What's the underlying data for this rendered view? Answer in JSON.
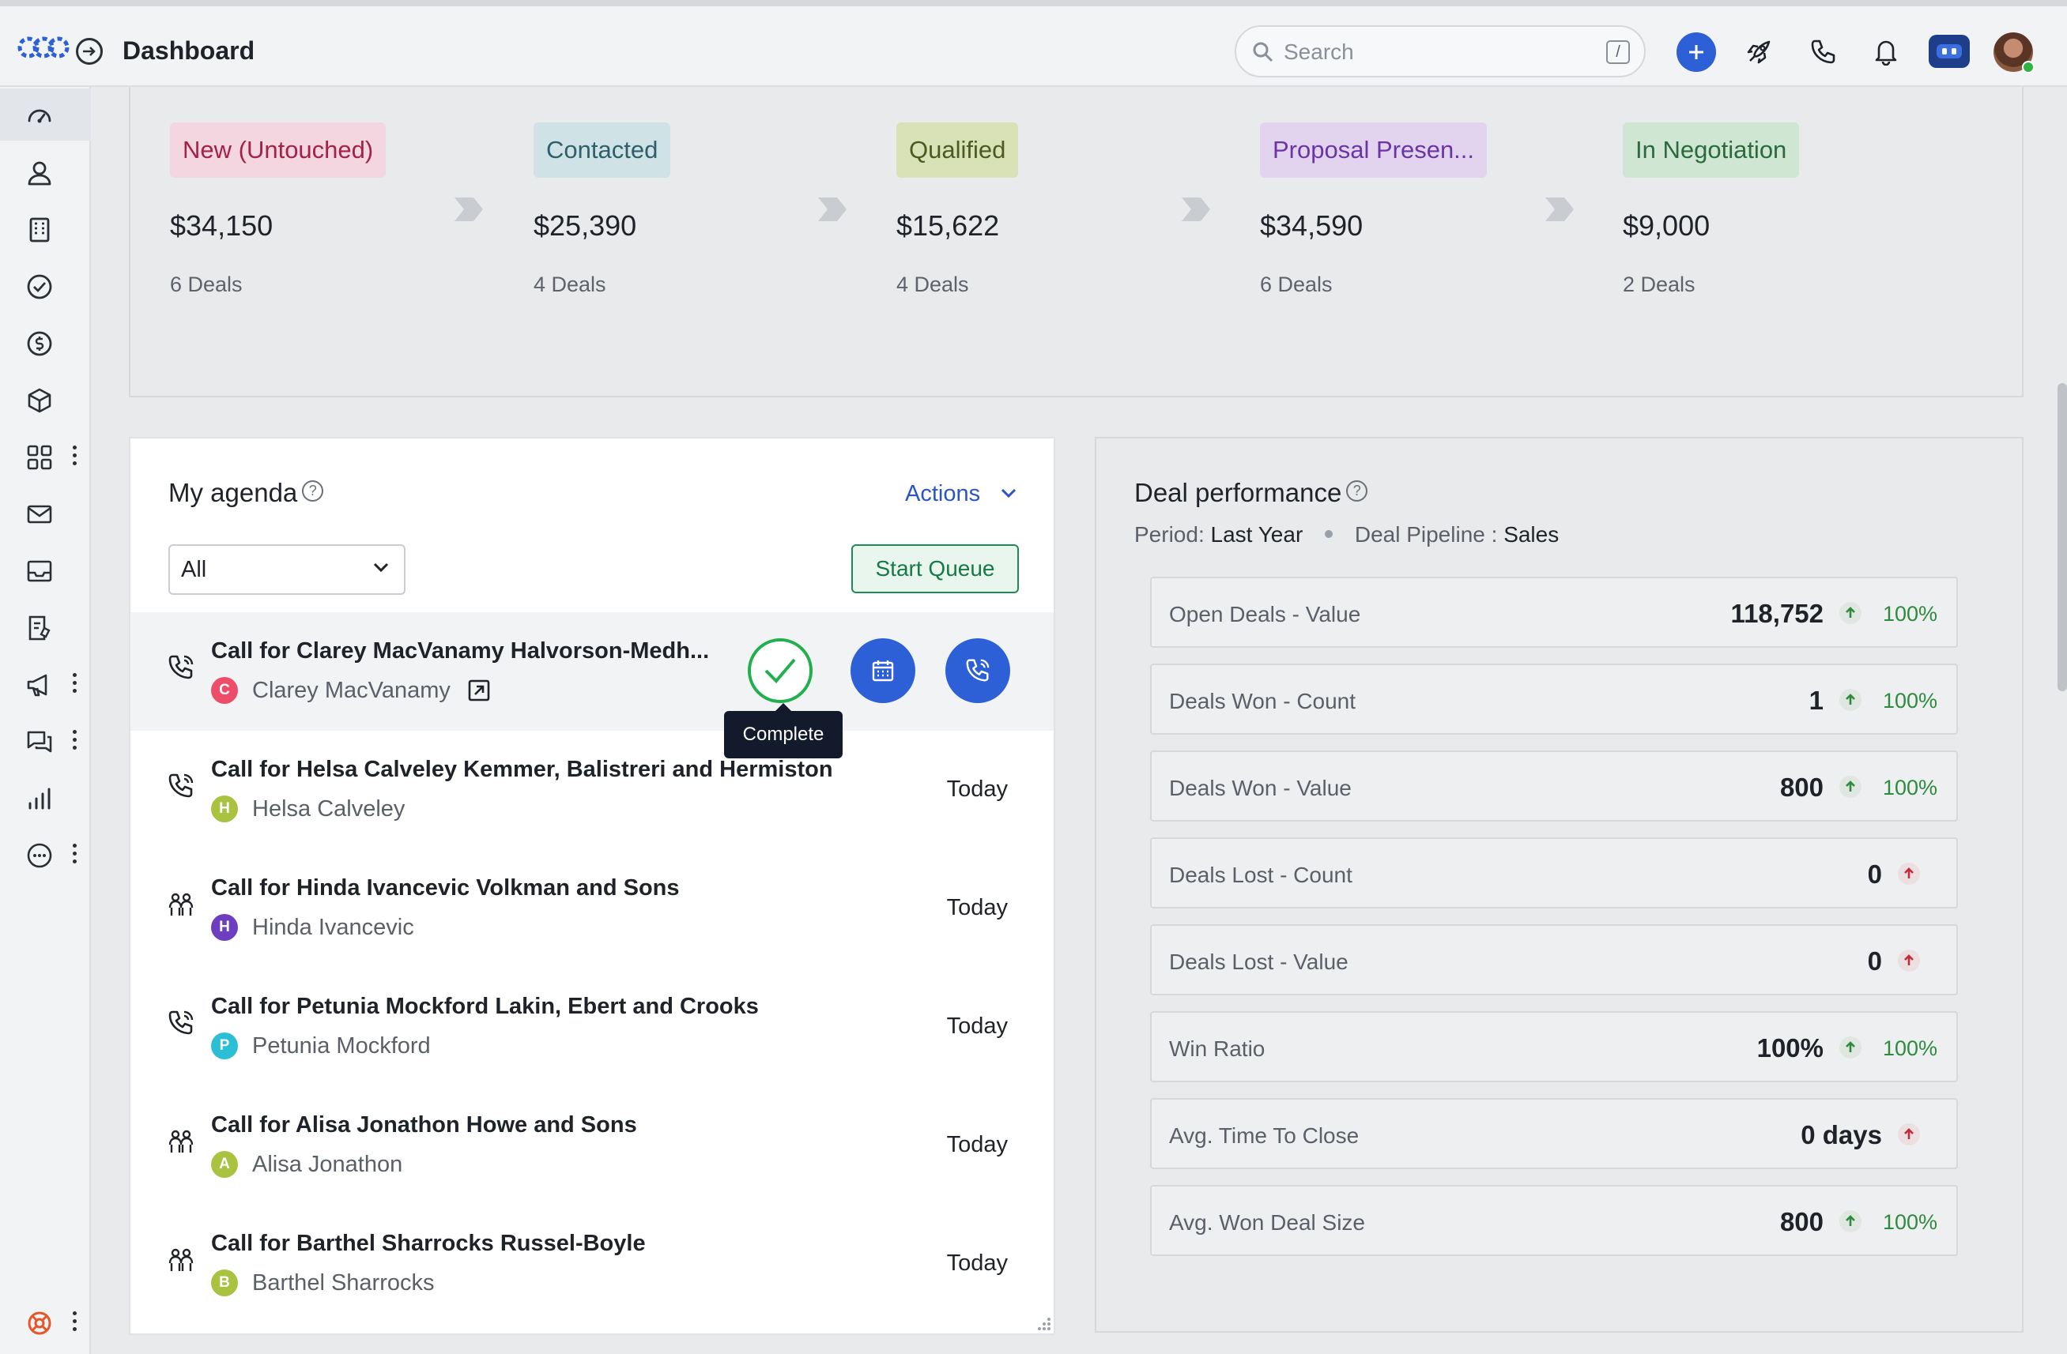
{
  "header": {
    "title": "Dashboard",
    "search_placeholder": "Search",
    "search_shortcut": "/"
  },
  "sidebar": {
    "items": [
      {
        "name": "dashboard-icon"
      },
      {
        "name": "contacts-icon"
      },
      {
        "name": "companies-icon"
      },
      {
        "name": "tasks-icon"
      },
      {
        "name": "deals-icon"
      },
      {
        "name": "products-icon"
      },
      {
        "name": "apps-icon"
      },
      {
        "name": "mail-icon"
      },
      {
        "name": "inbox-icon"
      },
      {
        "name": "documents-icon"
      },
      {
        "name": "campaigns-icon"
      },
      {
        "name": "chat-icon"
      },
      {
        "name": "reports-icon"
      },
      {
        "name": "more-icon"
      }
    ]
  },
  "pipeline": {
    "stages": [
      {
        "label": "New (Untouched)",
        "amount": "$34,150",
        "deals": "6 Deals",
        "bg": "#f3d6df",
        "fg": "#a3224a"
      },
      {
        "label": "Contacted",
        "amount": "$25,390",
        "deals": "4 Deals",
        "bg": "#cfe3e6",
        "fg": "#2f5f6a"
      },
      {
        "label": "Qualified",
        "amount": "$15,622",
        "deals": "4 Deals",
        "bg": "#d9e2b7",
        "fg": "#4b5a1f"
      },
      {
        "label": "Proposal Presen...",
        "amount": "$34,590",
        "deals": "6 Deals",
        "bg": "#e2d4ef",
        "fg": "#6c35a4"
      },
      {
        "label": "In Negotiation",
        "amount": "$9,000",
        "deals": "2 Deals",
        "bg": "#cfe6d3",
        "fg": "#2b6a3c"
      }
    ]
  },
  "agenda": {
    "title": "My agenda",
    "actions_label": "Actions",
    "filter_value": "All",
    "start_queue_label": "Start Queue",
    "tooltip": "Complete",
    "rows": [
      {
        "icon": "phone-icon",
        "title": "Call for Clarey MacVanamy Halvorson-Medh...",
        "person": "Clarey MacVanamy",
        "initial": "C",
        "badge_color": "#ee4d6a",
        "date": ""
      },
      {
        "icon": "phone-icon",
        "title": "Call for Helsa Calveley Kemmer, Balistreri and Hermiston",
        "person": "Helsa Calveley",
        "initial": "H",
        "badge_color": "#a9c23f",
        "date": "Today"
      },
      {
        "icon": "meeting-icon",
        "title": "Call for Hinda Ivancevic Volkman and Sons",
        "person": "Hinda Ivancevic",
        "initial": "H",
        "badge_color": "#6d3fc0",
        "date": "Today"
      },
      {
        "icon": "phone-icon",
        "title": "Call for Petunia Mockford Lakin, Ebert and Crooks",
        "person": "Petunia Mockford",
        "initial": "P",
        "badge_color": "#2bbfd6",
        "date": "Today"
      },
      {
        "icon": "meeting-icon",
        "title": "Call for Alisa Jonathon Howe and Sons",
        "person": "Alisa Jonathon",
        "initial": "A",
        "badge_color": "#a9c23f",
        "date": "Today"
      },
      {
        "icon": "meeting-icon",
        "title": "Call for Barthel Sharrocks Russel-Boyle",
        "person": "Barthel Sharrocks",
        "initial": "B",
        "badge_color": "#a9c23f",
        "date": "Today"
      }
    ]
  },
  "performance": {
    "title": "Deal performance",
    "period_label": "Period:",
    "period_value": "Last Year",
    "pipeline_label": "Deal Pipeline :",
    "pipeline_value": "Sales",
    "metrics": [
      {
        "label": "Open Deals - Value",
        "value": "118,752",
        "trend": "up",
        "pct": "100%"
      },
      {
        "label": "Deals Won - Count",
        "value": "1",
        "trend": "up",
        "pct": "100%"
      },
      {
        "label": "Deals Won - Value",
        "value": "800",
        "trend": "up",
        "pct": "100%"
      },
      {
        "label": "Deals Lost - Count",
        "value": "0",
        "trend": "up-red",
        "pct": ""
      },
      {
        "label": "Deals Lost - Value",
        "value": "0",
        "trend": "up-red",
        "pct": ""
      },
      {
        "label": "Win Ratio",
        "value": "100%",
        "trend": "up",
        "pct": "100%"
      },
      {
        "label": "Avg. Time To Close",
        "value": "0 days",
        "trend": "up-red",
        "pct": ""
      },
      {
        "label": "Avg. Won Deal Size",
        "value": "800",
        "trend": "up",
        "pct": "100%"
      }
    ]
  }
}
